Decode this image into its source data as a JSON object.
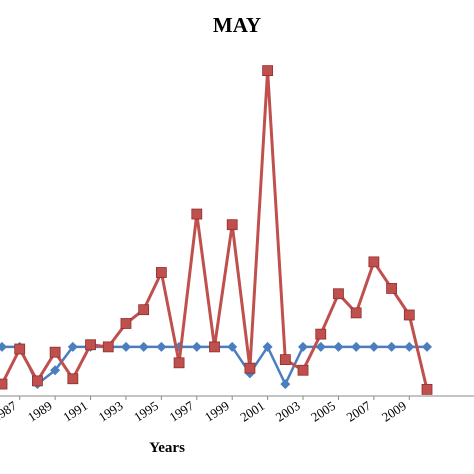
{
  "chart_data": {
    "type": "line",
    "title": "MAY",
    "xlabel": "Years",
    "ylabel": "",
    "x": [
      1986,
      1987,
      1988,
      1989,
      1990,
      1991,
      1992,
      1993,
      1994,
      1995,
      1996,
      1997,
      1998,
      1999,
      2000,
      2001,
      2002,
      2003,
      2004,
      2005,
      2006,
      2007,
      2008,
      2009,
      2010
    ],
    "tick_labels": [
      "1987",
      "1989",
      "1991",
      "1993",
      "1995",
      "1997",
      "1999",
      "2001",
      "2003",
      "2005",
      "2007",
      "2009"
    ],
    "ylim": [
      -10,
      310
    ],
    "grid": false,
    "series": [
      {
        "color": "#4a7ebf",
        "marker": "diamond",
        "values": [
          40,
          40,
          5,
          18,
          40,
          40,
          40,
          40,
          40,
          40,
          40,
          40,
          40,
          40,
          15,
          40,
          5,
          40,
          40,
          40,
          40,
          40,
          40,
          40,
          40
        ]
      },
      {
        "color": "#c0504d",
        "marker": "square",
        "values": [
          5,
          38,
          8,
          35,
          10,
          42,
          40,
          62,
          75,
          110,
          25,
          165,
          40,
          155,
          20,
          300,
          28,
          18,
          52,
          90,
          72,
          120,
          95,
          70,
          0
        ]
      }
    ]
  }
}
